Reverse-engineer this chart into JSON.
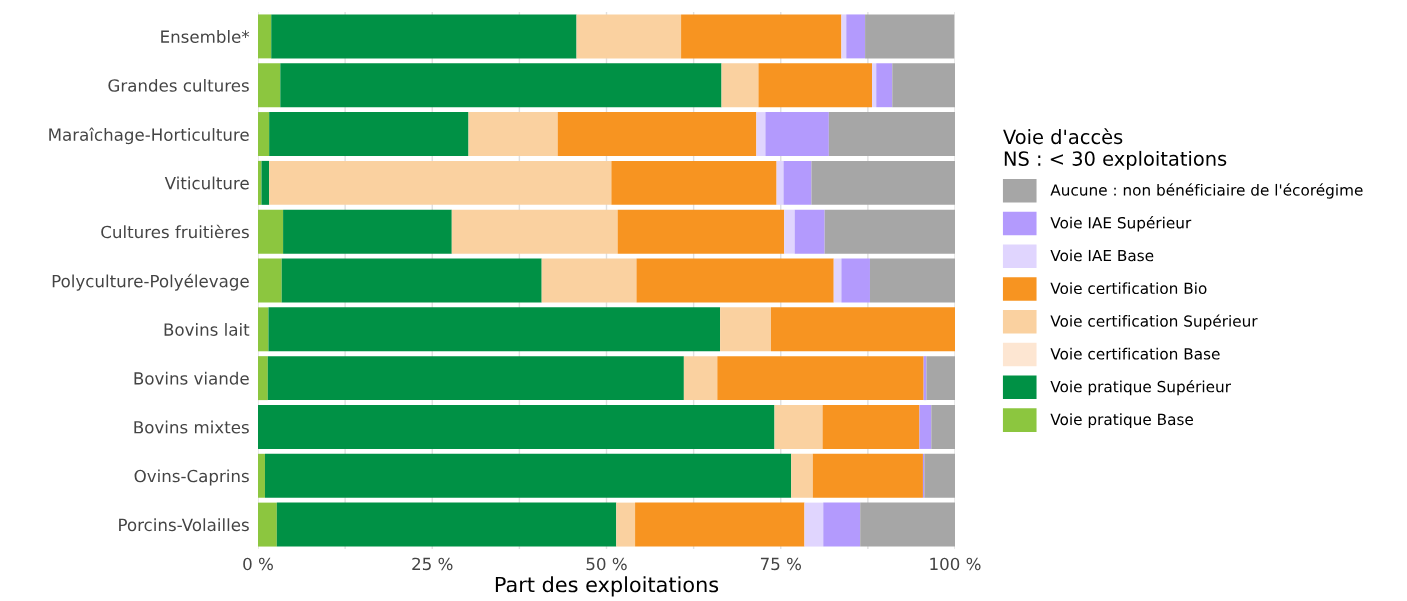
{
  "chart_data": {
    "type": "bar",
    "orientation": "horizontal",
    "stacked": true,
    "xlabel": "Part des exploitations",
    "legend_title": "Voie d'accès\nNS : < 30 exploitations",
    "legend": "right",
    "grid": "x",
    "categories": [
      "Ensemble*",
      "Grandes cultures",
      "Maraîchage-Horticulture",
      "Viticulture",
      "Cultures fruitières",
      "Polyculture-Polyélevage",
      "Bovins lait",
      "Bovins viande",
      "Bovins mixtes",
      "Ovins-Caprins",
      "Porcins-Volailles"
    ],
    "xlim": [
      0,
      100
    ],
    "xticks": [
      {
        "value": 0,
        "label": "0 %"
      },
      {
        "value": 12.5,
        "label": null
      },
      {
        "value": 25,
        "label": "25 %"
      },
      {
        "value": 37.5,
        "label": null
      },
      {
        "value": 50,
        "label": "50 %"
      },
      {
        "value": 62.5,
        "label": null
      },
      {
        "value": 75,
        "label": "75 %"
      },
      {
        "value": 87.5,
        "label": null
      },
      {
        "value": 100,
        "label": "100 %"
      }
    ],
    "series": [
      {
        "name": "Voie pratique Base",
        "color": "#8cc63f",
        "values": [
          1.9,
          3.2,
          1.6,
          0.5,
          3.6,
          3.4,
          1.5,
          1.4,
          0,
          1.0,
          2.7
        ]
      },
      {
        "name": "Voie pratique Supérieur",
        "color": "#009145",
        "values": [
          43.8,
          63.3,
          28.6,
          1.1,
          24.2,
          37.3,
          64.8,
          59.7,
          74.1,
          75.5,
          48.7
        ]
      },
      {
        "name": "Voie certification Base",
        "color": "#fde6d2",
        "values": [
          0,
          0,
          0,
          0,
          0,
          0,
          0,
          0,
          0,
          0,
          0
        ]
      },
      {
        "name": "Voie certification Supérieur",
        "color": "#fad1a0",
        "values": [
          15.0,
          5.3,
          12.8,
          49.1,
          23.8,
          13.6,
          7.3,
          4.8,
          6.9,
          3.1,
          2.7
        ]
      },
      {
        "name": "Voie certification Bio",
        "color": "#f79421",
        "values": [
          23.0,
          16.3,
          28.5,
          23.7,
          23.9,
          28.3,
          26.4,
          29.6,
          13.9,
          15.8,
          24.3
        ]
      },
      {
        "name": "Voie IAE Base",
        "color": "#e0d5fe",
        "values": [
          0.7,
          0.6,
          1.3,
          1.0,
          1.5,
          1.1,
          0,
          0,
          0,
          0,
          2.7
        ]
      },
      {
        "name": "Voie IAE Supérieur",
        "color": "#b39afd",
        "values": [
          2.7,
          2.3,
          9.1,
          4.0,
          4.3,
          4.1,
          0,
          0.4,
          1.7,
          0.2,
          5.3
        ]
      },
      {
        "name": "Aucune : non bénéficiaire de l'écorégime",
        "color": "#a6a6a6",
        "values": [
          12.8,
          9.0,
          18.1,
          20.6,
          18.7,
          12.2,
          0,
          4.1,
          3.4,
          4.4,
          13.6
        ]
      }
    ]
  }
}
